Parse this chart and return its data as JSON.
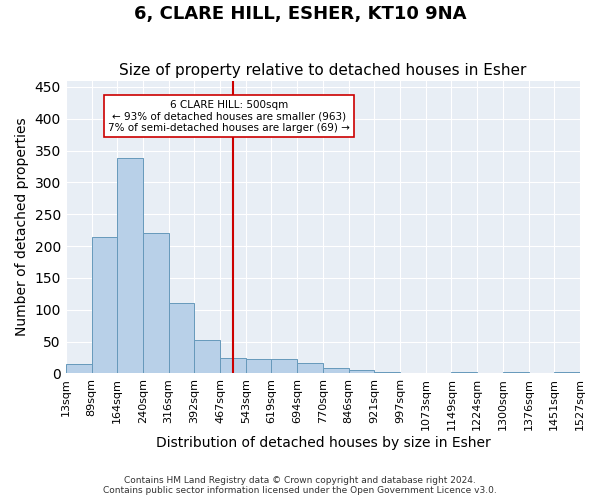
{
  "title": "6, CLARE HILL, ESHER, KT10 9NA",
  "subtitle": "Size of property relative to detached houses in Esher",
  "xlabel": "Distribution of detached houses by size in Esher",
  "ylabel": "Number of detached properties",
  "bin_labels": [
    "13sqm",
    "89sqm",
    "164sqm",
    "240sqm",
    "316sqm",
    "392sqm",
    "467sqm",
    "543sqm",
    "619sqm",
    "694sqm",
    "770sqm",
    "846sqm",
    "921sqm",
    "997sqm",
    "1073sqm",
    "1149sqm",
    "1224sqm",
    "1300sqm",
    "1376sqm",
    "1451sqm",
    "1527sqm"
  ],
  "bar_values": [
    15,
    215,
    338,
    220,
    111,
    53,
    25,
    23,
    23,
    17,
    8,
    5,
    2,
    0,
    0,
    3,
    0,
    3,
    0,
    2
  ],
  "bar_color": "#b8d0e8",
  "bar_edge_color": "#6699bb",
  "vertical_line_x": 6,
  "vertical_line_color": "#cc0000",
  "annotation_text": "6 CLARE HILL: 500sqm\n← 93% of detached houses are smaller (963)\n7% of semi-detached houses are larger (69) →",
  "annotation_box_color": "#ffffff",
  "annotation_box_edge_color": "#cc0000",
  "ylim": [
    0,
    460
  ],
  "yticks": [
    0,
    50,
    100,
    150,
    200,
    250,
    300,
    350,
    400,
    450
  ],
  "background_color": "#e8eef5",
  "plot_bg_color": "#e8eef5",
  "footer_text": "Contains HM Land Registry data © Crown copyright and database right 2024.\nContains public sector information licensed under the Open Government Licence v3.0.",
  "title_fontsize": 13,
  "subtitle_fontsize": 11,
  "axis_label_fontsize": 10,
  "tick_fontsize": 8
}
